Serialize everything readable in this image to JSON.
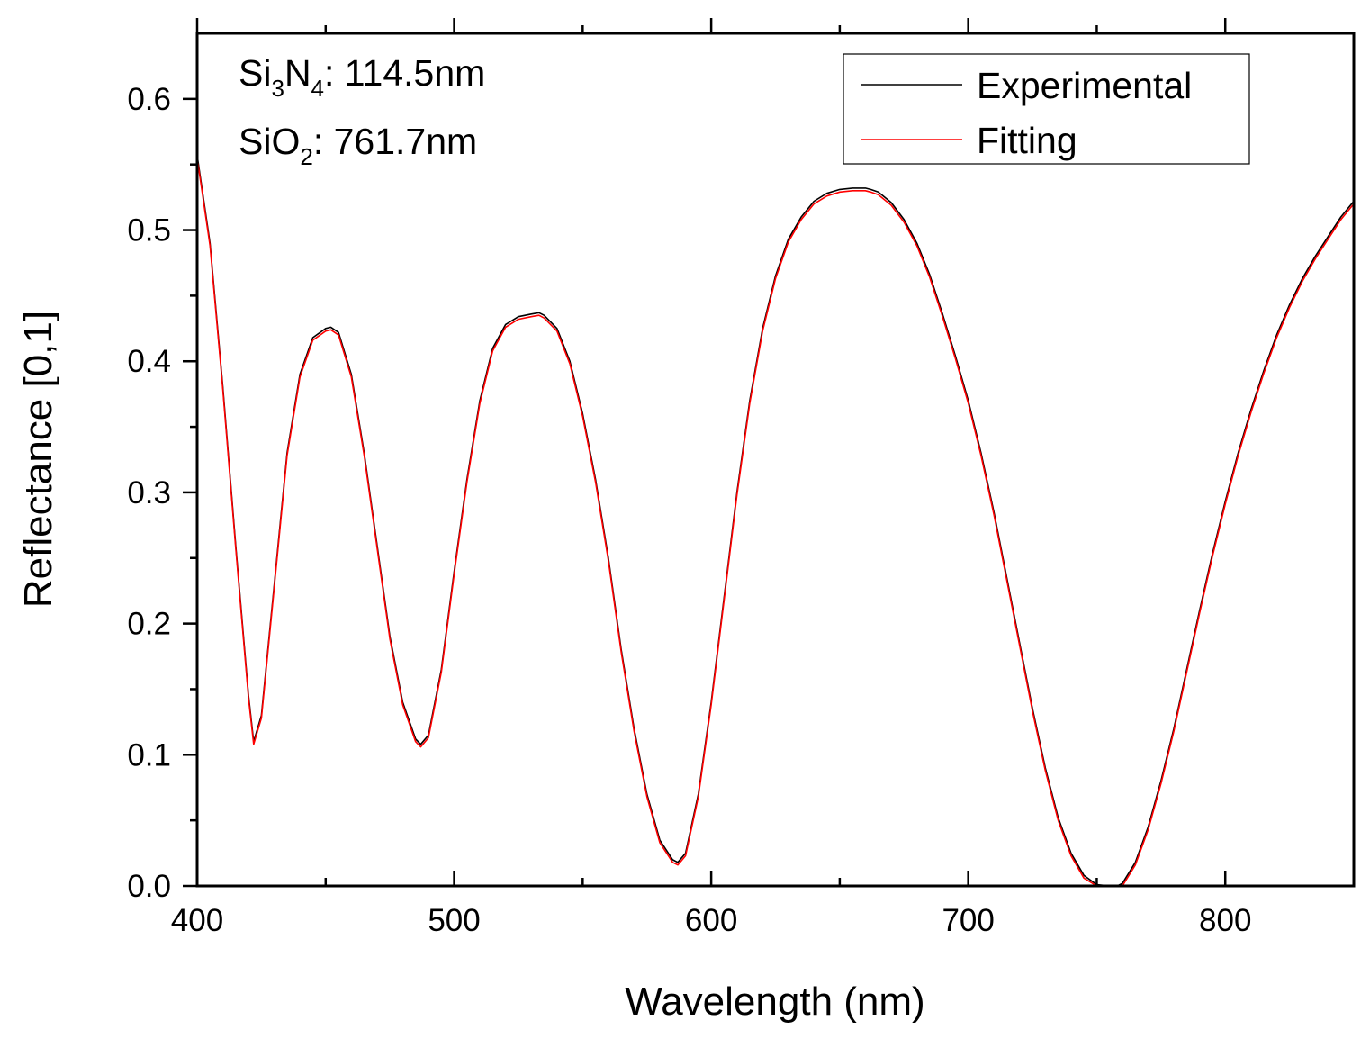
{
  "chart_data": {
    "type": "line",
    "title": "",
    "xlabel": "Wavelength (nm)",
    "ylabel": "Reflectance [0,1]",
    "xlim": [
      400,
      850
    ],
    "ylim": [
      0,
      0.65
    ],
    "xticks": [
      400,
      500,
      600,
      700,
      800
    ],
    "xtick_labels": [
      "400",
      "500",
      "600",
      "700",
      "800"
    ],
    "yticks": [
      0.0,
      0.1,
      0.2,
      0.3,
      0.4,
      0.5,
      0.6
    ],
    "ytick_labels": [
      "0.0",
      "0.1",
      "0.2",
      "0.3",
      "0.4",
      "0.5",
      "0.6"
    ],
    "grid": false,
    "legend_position": "top-right",
    "annotations": [
      {
        "base": "Si",
        "sub1": "3",
        "mid": "N",
        "sub2": "4",
        "value": ": 114.5nm"
      },
      {
        "base": "SiO",
        "sub1": "2",
        "value": ": 761.7nm"
      }
    ],
    "series": [
      {
        "name": "Experimental",
        "color": "#000000",
        "x": [
          400,
          405,
          410,
          415,
          420,
          422,
          425,
          430,
          435,
          440,
          445,
          450,
          452,
          455,
          460,
          465,
          470,
          475,
          480,
          485,
          487,
          490,
          495,
          500,
          505,
          510,
          515,
          520,
          525,
          530,
          533,
          535,
          540,
          545,
          550,
          555,
          560,
          565,
          570,
          575,
          580,
          585,
          587,
          590,
          595,
          600,
          605,
          610,
          615,
          620,
          625,
          630,
          635,
          640,
          645,
          650,
          655,
          660,
          662,
          665,
          670,
          675,
          680,
          685,
          690,
          695,
          700,
          705,
          710,
          715,
          720,
          725,
          730,
          735,
          740,
          745,
          750,
          755,
          758,
          760,
          765,
          770,
          775,
          780,
          785,
          790,
          795,
          800,
          805,
          810,
          815,
          820,
          825,
          830,
          835,
          840,
          845,
          850
        ],
        "y": [
          0.557,
          0.49,
          0.38,
          0.26,
          0.145,
          0.11,
          0.13,
          0.23,
          0.33,
          0.39,
          0.418,
          0.425,
          0.426,
          0.422,
          0.39,
          0.33,
          0.26,
          0.19,
          0.14,
          0.112,
          0.108,
          0.115,
          0.165,
          0.24,
          0.31,
          0.37,
          0.41,
          0.428,
          0.434,
          0.436,
          0.437,
          0.435,
          0.425,
          0.4,
          0.36,
          0.31,
          0.25,
          0.18,
          0.12,
          0.07,
          0.035,
          0.02,
          0.018,
          0.025,
          0.07,
          0.14,
          0.22,
          0.3,
          0.37,
          0.425,
          0.465,
          0.493,
          0.51,
          0.522,
          0.528,
          0.531,
          0.532,
          0.532,
          0.531,
          0.529,
          0.521,
          0.508,
          0.49,
          0.466,
          0.436,
          0.404,
          0.37,
          0.33,
          0.285,
          0.235,
          0.185,
          0.135,
          0.09,
          0.052,
          0.025,
          0.008,
          0.001,
          0.0,
          0.0,
          0.002,
          0.018,
          0.045,
          0.08,
          0.12,
          0.165,
          0.21,
          0.253,
          0.293,
          0.33,
          0.363,
          0.393,
          0.42,
          0.443,
          0.463,
          0.48,
          0.495,
          0.51,
          0.522
        ]
      },
      {
        "name": "Fitting",
        "color": "#ff0000",
        "x": [
          400,
          405,
          410,
          415,
          420,
          422,
          425,
          430,
          435,
          440,
          445,
          450,
          452,
          455,
          460,
          465,
          470,
          475,
          480,
          485,
          487,
          490,
          495,
          500,
          505,
          510,
          515,
          520,
          525,
          530,
          533,
          535,
          540,
          545,
          550,
          555,
          560,
          565,
          570,
          575,
          580,
          585,
          587,
          590,
          595,
          600,
          605,
          610,
          615,
          620,
          625,
          630,
          635,
          640,
          645,
          650,
          655,
          660,
          662,
          665,
          670,
          675,
          680,
          685,
          690,
          695,
          700,
          705,
          710,
          715,
          720,
          725,
          730,
          735,
          740,
          745,
          750,
          755,
          758,
          760,
          765,
          770,
          775,
          780,
          785,
          790,
          795,
          800,
          805,
          810,
          815,
          820,
          825,
          830,
          835,
          840,
          845,
          850
        ],
        "y": [
          0.555,
          0.488,
          0.378,
          0.258,
          0.143,
          0.108,
          0.128,
          0.228,
          0.328,
          0.388,
          0.416,
          0.423,
          0.424,
          0.42,
          0.388,
          0.328,
          0.258,
          0.188,
          0.138,
          0.11,
          0.106,
          0.113,
          0.163,
          0.238,
          0.308,
          0.368,
          0.408,
          0.426,
          0.432,
          0.434,
          0.435,
          0.433,
          0.423,
          0.398,
          0.358,
          0.308,
          0.248,
          0.178,
          0.118,
          0.068,
          0.033,
          0.018,
          0.016,
          0.023,
          0.068,
          0.138,
          0.218,
          0.298,
          0.368,
          0.423,
          0.463,
          0.491,
          0.508,
          0.52,
          0.526,
          0.529,
          0.53,
          0.53,
          0.529,
          0.527,
          0.519,
          0.506,
          0.488,
          0.464,
          0.434,
          0.402,
          0.368,
          0.328,
          0.283,
          0.233,
          0.183,
          0.133,
          0.088,
          0.05,
          0.023,
          0.006,
          0.0,
          0.0,
          0.0,
          0.0,
          0.016,
          0.043,
          0.078,
          0.118,
          0.163,
          0.208,
          0.251,
          0.291,
          0.328,
          0.361,
          0.391,
          0.418,
          0.441,
          0.461,
          0.478,
          0.493,
          0.508,
          0.52
        ]
      }
    ]
  }
}
